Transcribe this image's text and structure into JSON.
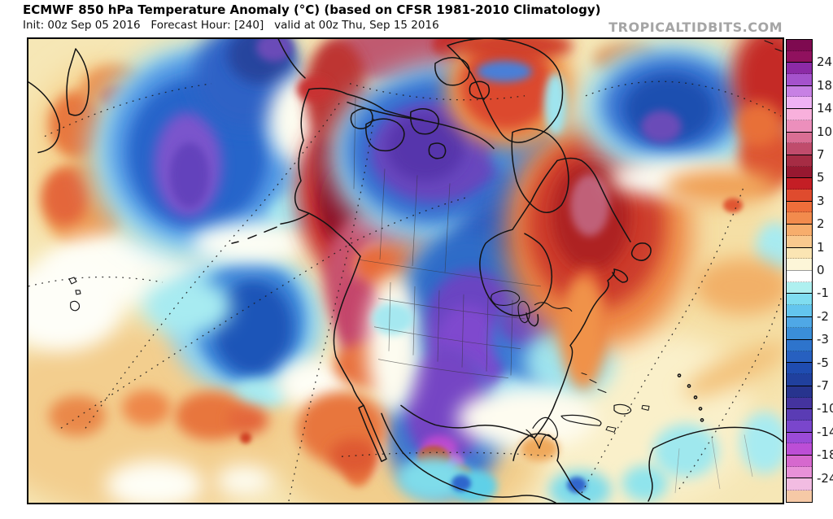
{
  "header": {
    "title": "ECMWF 850 hPa Temperature Anomaly (°C) (based on CFSR 1981-2010 Climatology)",
    "subtitle": "Init: 00z Sep 05 2016   Forecast Hour: [240]   valid at 00z Thu, Sep 15 2016",
    "watermark": "TROPICALTIDBITS.COM"
  },
  "colorbar": {
    "unit": "°C",
    "labels": [
      "24",
      "18",
      "14",
      "10",
      "7",
      "5",
      "3",
      "2",
      "1",
      "0",
      "-1",
      "-2",
      "-3",
      "-5",
      "-7",
      "-10",
      "-14",
      "-18",
      "-24"
    ],
    "zero_label_index": 9,
    "intervals": [
      [
        "#7E0A50",
        "#90115E"
      ],
      [
        "#8C2AA6",
        "#A552CC"
      ],
      [
        "#C780E4",
        "#EFB2F4"
      ],
      [
        "#F8B0DC",
        "#EC8FBC"
      ],
      [
        "#DA6E94",
        "#C04C6C"
      ],
      [
        "#A62C44",
        "#971830"
      ],
      [
        "#C41E25",
        "#DF4B2E"
      ],
      [
        "#EE6E3A",
        "#F28B4D"
      ],
      [
        "#F7AD6C",
        "#F9C98E"
      ],
      [
        "#FBE5B3",
        "#FDF6D8"
      ],
      [
        "#FFFFFF",
        "#AFF0F0"
      ],
      [
        "#7FDDF0",
        "#63C5EE"
      ],
      [
        "#4FA8E6",
        "#3A8ED8"
      ],
      [
        "#2E74CC",
        "#2760C0"
      ],
      [
        "#1F4CB0",
        "#20409E"
      ],
      [
        "#27348E",
        "#44339E"
      ],
      [
        "#5A3CB4",
        "#7A46CC"
      ],
      [
        "#9B4BD8",
        "#BC4ED6"
      ],
      [
        "#D668CE",
        "#E891D8"
      ],
      [
        "#F2BCE2",
        "#F6C9A6"
      ]
    ]
  },
  "map": {
    "frame_color": "#000000",
    "base_color": "#F6E7B6",
    "description_visible_regions": "850hPa temperature anomaly shading over North America"
  }
}
